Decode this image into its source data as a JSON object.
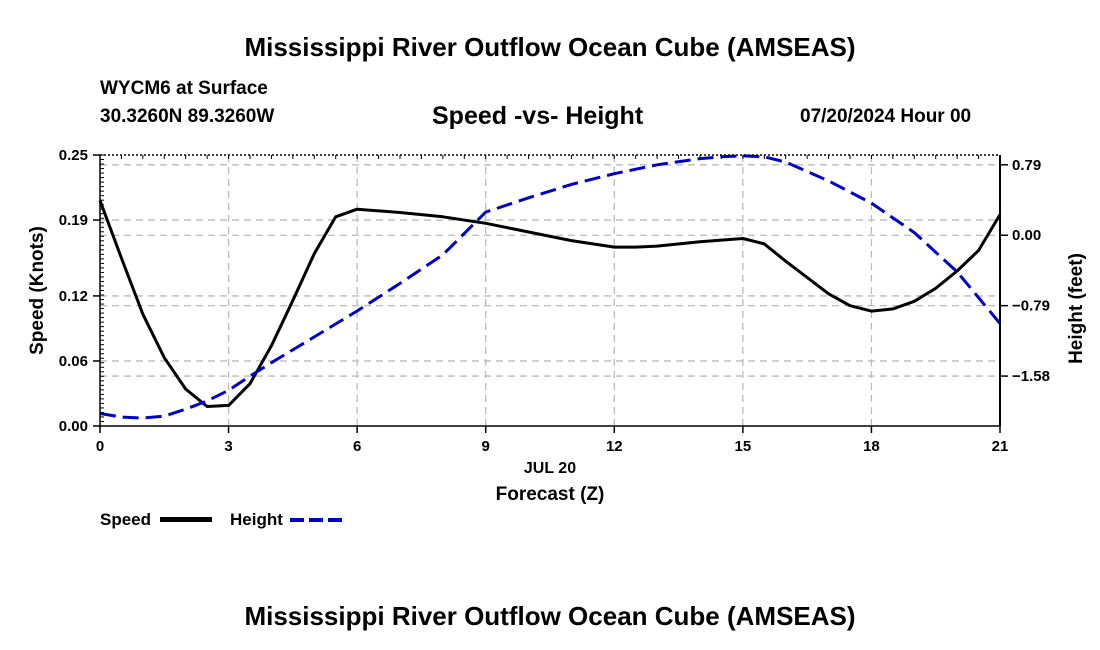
{
  "header": {
    "title": "Mississippi River Outflow Ocean Cube (AMSEAS)",
    "station": "WYCM6 at Surface",
    "coords": "30.3260N  89.3260W",
    "subtitle": "Speed -vs- Height",
    "datetime": "07/20/2024 Hour 00"
  },
  "footer": {
    "title": "Mississippi River Outflow Ocean Cube (AMSEAS)"
  },
  "legend": {
    "speed_label": "Speed",
    "height_label": "Height"
  },
  "chart_data": {
    "type": "line",
    "title": "Speed -vs- Height",
    "xlabel": "Forecast (Z)",
    "xdate_label": "JUL 20",
    "ylabel": "Speed (Knots)",
    "y2label": "Height (feet)",
    "xlim": [
      0,
      21
    ],
    "ylim": [
      0,
      0.25
    ],
    "y2lim": [
      -2.14,
      0.9
    ],
    "x_ticks": [
      0,
      3,
      6,
      9,
      12,
      15,
      18,
      21
    ],
    "x_tick_labels": [
      "0",
      "3",
      "6",
      "9",
      "12",
      "15",
      "18",
      "21"
    ],
    "y_ticks": [
      0,
      0.06,
      0.12,
      0.19,
      0.25
    ],
    "y_tick_labels": [
      "0.00",
      "0.06",
      "0.12",
      "0.19",
      "0.25"
    ],
    "y2_ticks": [
      -1.58,
      -0.79,
      0,
      0.79
    ],
    "y2_tick_labels": [
      "−1.58",
      "−0.79",
      "0.00",
      "0.79"
    ],
    "grid": true,
    "series": [
      {
        "name": "Speed",
        "axis": "left",
        "color": "#000000",
        "style": "solid",
        "x": [
          0,
          0.5,
          1,
          1.5,
          2,
          2.5,
          3,
          3.5,
          4,
          4.5,
          5,
          5.5,
          6,
          7,
          8,
          9,
          10,
          11,
          12,
          12.5,
          13,
          14,
          15,
          15.5,
          16,
          17,
          17.5,
          18,
          18.5,
          19,
          19.5,
          20,
          20.5,
          21
        ],
        "y": [
          0.208,
          0.155,
          0.103,
          0.063,
          0.034,
          0.018,
          0.019,
          0.039,
          0.074,
          0.116,
          0.159,
          0.193,
          0.2,
          0.197,
          0.193,
          0.187,
          0.179,
          0.171,
          0.165,
          0.165,
          0.166,
          0.17,
          0.173,
          0.168,
          0.152,
          0.122,
          0.111,
          0.106,
          0.108,
          0.115,
          0.127,
          0.143,
          0.162,
          0.195
        ]
      },
      {
        "name": "Height",
        "axis": "right",
        "color": "#0000cc",
        "style": "dashed",
        "x": [
          0,
          0.5,
          1,
          1.5,
          2,
          2.5,
          3,
          3.5,
          4,
          5,
          6,
          7,
          8,
          9,
          10,
          11,
          12,
          13,
          14,
          14.5,
          15,
          15.5,
          16,
          17,
          18,
          19,
          20,
          21
        ],
        "y": [
          -2.0,
          -2.04,
          -2.05,
          -2.03,
          -1.95,
          -1.86,
          -1.74,
          -1.58,
          -1.43,
          -1.14,
          -0.85,
          -0.54,
          -0.22,
          0.26,
          0.42,
          0.57,
          0.69,
          0.79,
          0.86,
          0.88,
          0.89,
          0.88,
          0.82,
          0.61,
          0.36,
          0.03,
          -0.41,
          -0.99
        ]
      }
    ]
  }
}
